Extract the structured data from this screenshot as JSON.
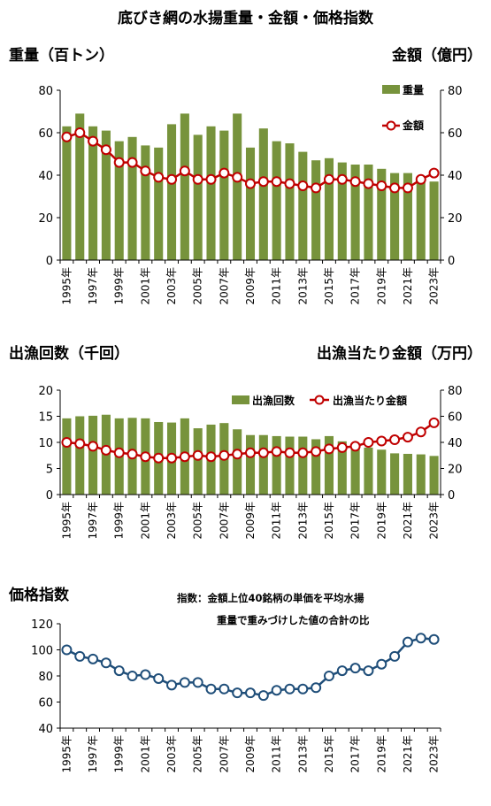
{
  "page_title": "底びき網の水揚重量・金額・価格指数",
  "chart_data": [
    {
      "type": "bar+line",
      "left_ylabel": "重量（百トン）",
      "right_ylabel": "金額（億円）",
      "left_ylim": [
        0,
        80
      ],
      "right_ylim": [
        0,
        80
      ],
      "left_ticks": [
        "0",
        "20",
        "40",
        "60",
        "80"
      ],
      "right_ticks": [
        "0",
        "20",
        "40",
        "60",
        "80"
      ],
      "x": [
        "1995年",
        "1996年",
        "1997年",
        "1998年",
        "1999年",
        "2000年",
        "2001年",
        "2002年",
        "2003年",
        "2004年",
        "2005年",
        "2006年",
        "2007年",
        "2008年",
        "2009年",
        "2010年",
        "2011年",
        "2012年",
        "2013年",
        "2014年",
        "2015年",
        "2016年",
        "2017年",
        "2018年",
        "2019年",
        "2020年",
        "2021年",
        "2022年",
        "2023年"
      ],
      "xtick_labels": [
        "1995年",
        "1997年",
        "1999年",
        "2001年",
        "2003年",
        "2005年",
        "2007年",
        "2009年",
        "2011年",
        "2013年",
        "2015年",
        "2017年",
        "2019年",
        "2021年",
        "2023年"
      ],
      "legend": [
        "重量",
        "金額"
      ],
      "series": [
        {
          "name": "重量",
          "axis": "left",
          "kind": "bar",
          "color": "#77933c",
          "values": [
            63,
            69,
            63,
            61,
            56,
            58,
            54,
            53,
            64,
            69,
            59,
            63,
            61,
            69,
            53,
            62,
            56,
            55,
            51,
            47,
            48,
            46,
            45,
            45,
            43,
            41,
            41,
            38,
            37
          ]
        },
        {
          "name": "金額",
          "axis": "right",
          "kind": "line",
          "color": "#c00000",
          "values": [
            58,
            60,
            56,
            52,
            46,
            46,
            42,
            39,
            38,
            42,
            38,
            38,
            41,
            39,
            36,
            37,
            37,
            36,
            35,
            34,
            38,
            38,
            37,
            36,
            35,
            34,
            34,
            38,
            41
          ]
        }
      ]
    },
    {
      "type": "bar+line",
      "left_ylabel": "出漁回数（千回）",
      "right_ylabel": "出漁当たり金額（万円）",
      "left_ylim": [
        0,
        20
      ],
      "right_ylim": [
        0,
        80
      ],
      "left_ticks": [
        "0",
        "5",
        "10",
        "15",
        "20"
      ],
      "right_ticks": [
        "0",
        "20",
        "40",
        "60",
        "80"
      ],
      "x": [
        "1995年",
        "1996年",
        "1997年",
        "1998年",
        "1999年",
        "2000年",
        "2001年",
        "2002年",
        "2003年",
        "2004年",
        "2005年",
        "2006年",
        "2007年",
        "2008年",
        "2009年",
        "2010年",
        "2011年",
        "2012年",
        "2013年",
        "2014年",
        "2015年",
        "2016年",
        "2017年",
        "2018年",
        "2019年",
        "2020年",
        "2021年",
        "2022年",
        "2023年"
      ],
      "xtick_labels": [
        "1995年",
        "1997年",
        "1999年",
        "2001年",
        "2003年",
        "2005年",
        "2007年",
        "2009年",
        "2011年",
        "2013年",
        "2015年",
        "2017年",
        "2019年",
        "2021年",
        "2023年"
      ],
      "legend": [
        "出漁回数",
        "出漁当たり金額"
      ],
      "series": [
        {
          "name": "出漁回数",
          "axis": "left",
          "kind": "bar",
          "color": "#77933c",
          "values": [
            14.6,
            15.0,
            15.1,
            15.3,
            14.6,
            14.7,
            14.6,
            13.9,
            13.8,
            14.6,
            12.7,
            13.4,
            13.7,
            12.5,
            11.4,
            11.4,
            11.2,
            11.1,
            11.1,
            10.6,
            11.2,
            10.2,
            9.6,
            9.0,
            8.6,
            7.9,
            7.8,
            7.7,
            7.4
          ]
        },
        {
          "name": "出漁当たり金額",
          "axis": "right",
          "kind": "line",
          "color": "#c00000",
          "values": [
            40,
            39,
            37,
            34,
            32,
            31,
            29,
            28,
            28,
            29,
            30,
            29,
            30,
            31,
            32,
            32,
            33,
            32,
            32,
            33,
            35,
            36,
            37,
            40,
            41,
            42,
            44,
            48,
            55
          ]
        }
      ]
    },
    {
      "type": "line",
      "ylabel": "価格指数",
      "ylim": [
        40,
        120
      ],
      "yticks": [
        "40",
        "60",
        "80",
        "100",
        "120"
      ],
      "x": [
        "1995年",
        "1996年",
        "1997年",
        "1998年",
        "1999年",
        "2000年",
        "2001年",
        "2002年",
        "2003年",
        "2004年",
        "2005年",
        "2006年",
        "2007年",
        "2008年",
        "2009年",
        "2010年",
        "2011年",
        "2012年",
        "2013年",
        "2014年",
        "2015年",
        "2016年",
        "2017年",
        "2018年",
        "2019年",
        "2020年",
        "2021年",
        "2022年",
        "2023年"
      ],
      "xtick_labels": [
        "1995年",
        "1997年",
        "1999年",
        "2001年",
        "2003年",
        "2005年",
        "2007年",
        "2009年",
        "2011年",
        "2013年",
        "2015年",
        "2017年",
        "2019年",
        "2021年",
        "2023年"
      ],
      "annotation_line1": "指数：金額上位40銘柄の単価を平均水揚",
      "annotation_line2": "重量で重みづけした値の合計の比",
      "series": [
        {
          "name": "価格指数",
          "color": "#1f4e79",
          "values": [
            100,
            95,
            93,
            90,
            84,
            80,
            81,
            78,
            73,
            75,
            75,
            70,
            70,
            67,
            67,
            65,
            69,
            70,
            70,
            71,
            80,
            84,
            86,
            84,
            89,
            95,
            106,
            109,
            108
          ]
        }
      ]
    }
  ]
}
